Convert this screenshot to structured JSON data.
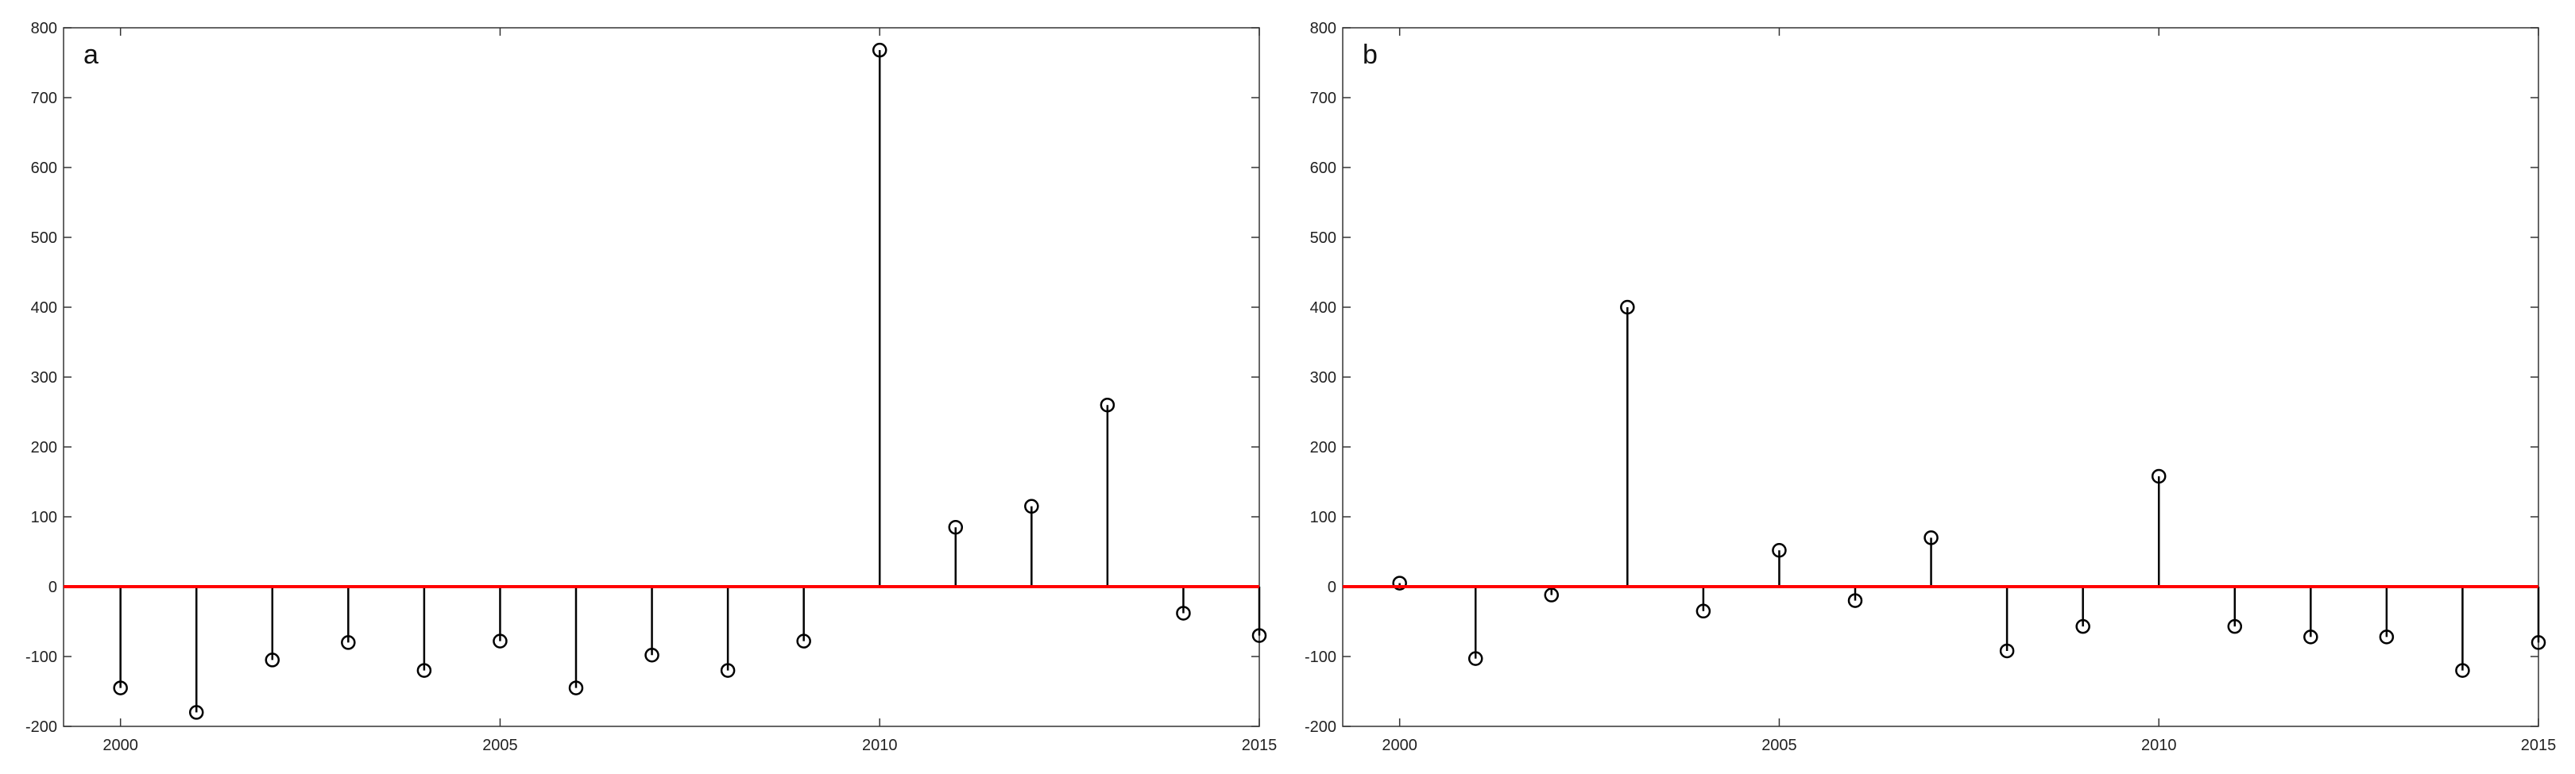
{
  "chart_data": [
    {
      "type": "stem",
      "label": "a",
      "xlim": [
        1999.25,
        2015
      ],
      "ylim": [
        -200,
        800
      ],
      "x_ticks": [
        "2000",
        "2005",
        "2010",
        "2015"
      ],
      "y_ticks": [
        "800",
        "700",
        "600",
        "500",
        "400",
        "300",
        "200",
        "100",
        "0",
        "-100",
        "-200"
      ],
      "baseline_color": "#ff0000",
      "x": [
        2000,
        2001,
        2002,
        2003,
        2004,
        2005,
        2006,
        2007,
        2008,
        2009,
        2010,
        2011,
        2012,
        2013,
        2014,
        2015
      ],
      "values": [
        -145,
        -180,
        -105,
        -80,
        -120,
        -78,
        -145,
        -98,
        -120,
        -78,
        768,
        85,
        115,
        260,
        -38,
        -70
      ]
    },
    {
      "type": "stem",
      "label": "b",
      "xlim": [
        1999.25,
        2015
      ],
      "ylim": [
        -200,
        800
      ],
      "x_ticks": [
        "2000",
        "2005",
        "2010",
        "2015"
      ],
      "y_ticks": [
        "800",
        "700",
        "600",
        "500",
        "400",
        "300",
        "200",
        "100",
        "0",
        "-100",
        "-200"
      ],
      "baseline_color": "#ff0000",
      "x": [
        2000,
        2001,
        2002,
        2003,
        2004,
        2005,
        2006,
        2007,
        2008,
        2009,
        2010,
        2011,
        2012,
        2013,
        2014,
        2015
      ],
      "values": [
        5,
        -103,
        -12,
        400,
        -35,
        52,
        -20,
        70,
        -92,
        -57,
        158,
        -57,
        -72,
        -72,
        -120,
        -80
      ]
    }
  ]
}
